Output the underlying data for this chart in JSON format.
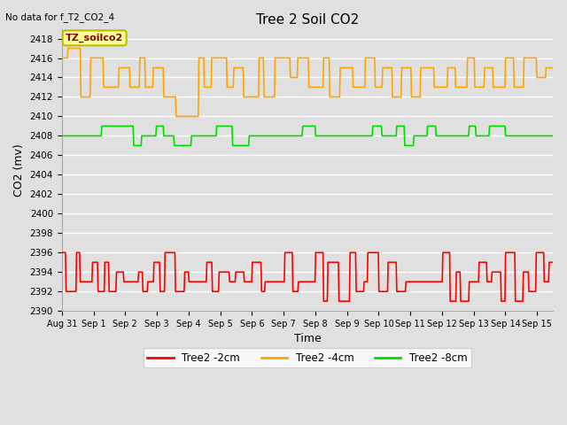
{
  "title": "Tree 2 Soil CO2",
  "top_left_note": "No data for f_T2_CO2_4",
  "xlabel": "Time",
  "ylabel": "CO2 (mv)",
  "ylim": [
    2390,
    2419
  ],
  "yticks": [
    2390,
    2392,
    2394,
    2396,
    2398,
    2400,
    2402,
    2404,
    2406,
    2408,
    2410,
    2412,
    2414,
    2416,
    2418
  ],
  "xlim": [
    0,
    15.5
  ],
  "xtick_labels": [
    "Aug 31",
    "Sep 1",
    "Sep 2",
    "Sep 3",
    "Sep 4",
    "Sep 5",
    "Sep 6",
    "Sep 7",
    "Sep 8",
    "Sep 9",
    "Sep 10",
    "Sep 11",
    "Sep 12",
    "Sep 13",
    "Sep 14",
    "Sep 15"
  ],
  "xtick_positions": [
    0,
    1,
    2,
    3,
    4,
    5,
    6,
    7,
    8,
    9,
    10,
    11,
    12,
    13,
    14,
    15
  ],
  "annotation_text": "TZ_soilco2",
  "bg_color": "#e0e0e0",
  "plot_bg_color": "#e0e0e0",
  "grid_color": "white",
  "colors": {
    "red": "#ff0000",
    "orange": "#ffa500",
    "green": "#00dd00"
  },
  "legend_labels": [
    "Tree2 -2cm",
    "Tree2 -4cm",
    "Tree2 -8cm"
  ],
  "legend_colors": [
    "#ff0000",
    "#ffa500",
    "#00dd00"
  ]
}
